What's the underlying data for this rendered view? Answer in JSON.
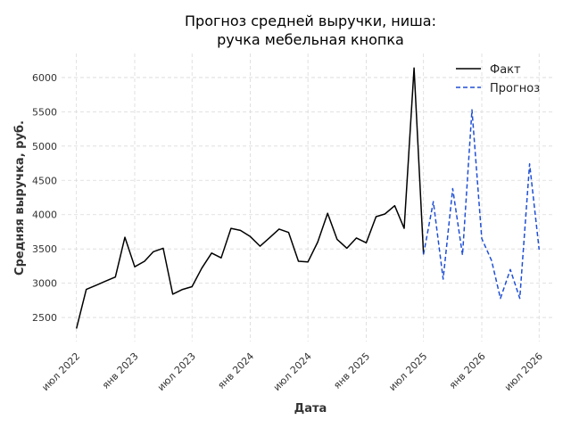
{
  "chart_data": {
    "type": "line",
    "title_lines": [
      "Прогноз средней выручки, ниша:",
      "ручка мебельная кнопка"
    ],
    "xlabel": "Дата",
    "ylabel": "Средняя выручка, руб.",
    "xlim": [
      "2022-05-15",
      "2026-08-20"
    ],
    "ylim": [
      2150,
      6350
    ],
    "yticks": [
      2500,
      3000,
      3500,
      4000,
      4500,
      5000,
      5500,
      6000
    ],
    "xticks": [
      {
        "date": "2022-07-01",
        "label": "июл 2022"
      },
      {
        "date": "2023-01-01",
        "label": "янв 2023"
      },
      {
        "date": "2023-07-01",
        "label": "июл 2023"
      },
      {
        "date": "2024-01-01",
        "label": "янв 2024"
      },
      {
        "date": "2024-07-01",
        "label": "июл 2024"
      },
      {
        "date": "2025-01-01",
        "label": "янв 2025"
      },
      {
        "date": "2025-07-01",
        "label": "июл 2025"
      },
      {
        "date": "2026-01-01",
        "label": "янв 2026"
      },
      {
        "date": "2026-07-01",
        "label": "июл 2026"
      }
    ],
    "grid": true,
    "legend_position": "top-right",
    "series": [
      {
        "name": "Факт",
        "color": "#000000",
        "style": "solid",
        "points": [
          [
            "2022-07-01",
            2340
          ],
          [
            "2022-08-01",
            2910
          ],
          [
            "2022-09-01",
            2970
          ],
          [
            "2022-10-01",
            3030
          ],
          [
            "2022-11-01",
            3090
          ],
          [
            "2022-12-01",
            3670
          ],
          [
            "2023-01-01",
            3240
          ],
          [
            "2023-02-01",
            3320
          ],
          [
            "2023-03-01",
            3460
          ],
          [
            "2023-04-01",
            3510
          ],
          [
            "2023-05-01",
            2840
          ],
          [
            "2023-06-01",
            2910
          ],
          [
            "2023-07-01",
            2950
          ],
          [
            "2023-08-01",
            3220
          ],
          [
            "2023-09-01",
            3440
          ],
          [
            "2023-10-01",
            3370
          ],
          [
            "2023-11-01",
            3800
          ],
          [
            "2023-12-01",
            3770
          ],
          [
            "2024-01-01",
            3680
          ],
          [
            "2024-02-01",
            3540
          ],
          [
            "2024-03-01",
            3660
          ],
          [
            "2024-04-01",
            3790
          ],
          [
            "2024-05-01",
            3740
          ],
          [
            "2024-06-01",
            3320
          ],
          [
            "2024-07-01",
            3310
          ],
          [
            "2024-08-01",
            3600
          ],
          [
            "2024-09-01",
            4020
          ],
          [
            "2024-10-01",
            3640
          ],
          [
            "2024-11-01",
            3510
          ],
          [
            "2024-12-01",
            3660
          ],
          [
            "2025-01-01",
            3590
          ],
          [
            "2025-02-01",
            3970
          ],
          [
            "2025-03-01",
            4010
          ],
          [
            "2025-04-01",
            4130
          ],
          [
            "2025-05-01",
            3800
          ],
          [
            "2025-06-01",
            6140
          ],
          [
            "2025-07-01",
            3420
          ]
        ]
      },
      {
        "name": "Прогноз",
        "color": "#1f4fd6",
        "style": "dashed",
        "points": [
          [
            "2025-07-01",
            3420
          ],
          [
            "2025-08-01",
            4190
          ],
          [
            "2025-09-01",
            3060
          ],
          [
            "2025-10-01",
            4380
          ],
          [
            "2025-11-01",
            3410
          ],
          [
            "2025-12-01",
            5530
          ],
          [
            "2026-01-01",
            3650
          ],
          [
            "2026-02-01",
            3330
          ],
          [
            "2026-03-01",
            2780
          ],
          [
            "2026-04-01",
            3200
          ],
          [
            "2026-05-01",
            2780
          ],
          [
            "2026-06-01",
            4740
          ],
          [
            "2026-07-01",
            3490
          ]
        ]
      }
    ]
  }
}
